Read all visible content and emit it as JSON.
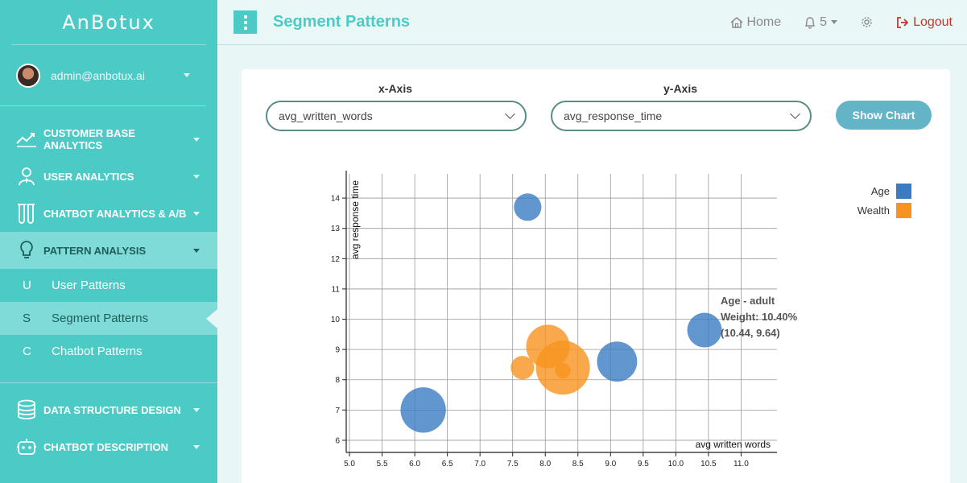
{
  "brand": "AnBotux",
  "user": {
    "email": "admin@anbotux.ai"
  },
  "nav": [
    {
      "label": "CUSTOMER BASE ANALYTICS",
      "icon": "trend-line-icon"
    },
    {
      "label": "USER ANALYTICS",
      "icon": "user-icon"
    },
    {
      "label": "CHATBOT ANALYTICS & A/B",
      "icon": "flask-icon"
    },
    {
      "label": "PATTERN ANALYSIS",
      "icon": "lightbulb-icon",
      "active": true
    }
  ],
  "subnav": [
    {
      "letter": "U",
      "label": "User Patterns"
    },
    {
      "letter": "S",
      "label": "Segment Patterns",
      "active": true
    },
    {
      "letter": "C",
      "label": "Chatbot Patterns"
    }
  ],
  "nav2": [
    {
      "label": "DATA STRUCTURE DESIGN",
      "icon": "database-icon"
    },
    {
      "label": "CHATBOT DESCRIPTION",
      "icon": "robot-icon"
    }
  ],
  "header": {
    "title": "Segment Patterns",
    "home": "Home",
    "notifications": "5",
    "logout": "Logout"
  },
  "controls": {
    "x_label": "x-Axis",
    "y_label": "y-Axis",
    "x_value": "avg_written_words",
    "y_value": "avg_response_time",
    "show_button": "Show Chart"
  },
  "colors": {
    "accent": "#4ccbc6",
    "age": "#3a7cc3",
    "wealth": "#f7931e",
    "logout": "#c0392b"
  },
  "chart_data": {
    "type": "scatter",
    "xlabel": "avg written words",
    "ylabel": "avg response time",
    "xlim": [
      4.95,
      11.55
    ],
    "ylim": [
      5.6,
      14.8
    ],
    "x_ticks": [
      5.0,
      5.5,
      6.0,
      6.5,
      7.0,
      7.5,
      8.0,
      8.5,
      9.0,
      9.5,
      10.0,
      10.5,
      11.0
    ],
    "y_ticks": [
      6,
      7,
      8,
      9,
      10,
      11,
      12,
      13,
      14
    ],
    "grid": true,
    "legend_position": "top-right",
    "series": [
      {
        "name": "Age",
        "color": "#3a7cc3",
        "points": [
          {
            "x": 6.13,
            "y": 7.0,
            "weight": 6.0
          },
          {
            "x": 7.73,
            "y": 13.7,
            "weight": 2.2
          },
          {
            "x": 9.1,
            "y": 8.6,
            "weight": 4.7
          },
          {
            "x": 10.44,
            "y": 9.64,
            "weight": 3.5
          }
        ]
      },
      {
        "name": "Wealth",
        "color": "#f7931e",
        "points": [
          {
            "x": 7.65,
            "y": 8.4,
            "weight": 1.6
          },
          {
            "x": 8.04,
            "y": 9.1,
            "weight": 5.5
          },
          {
            "x": 8.27,
            "y": 8.4,
            "weight": 8.5
          },
          {
            "x": 8.27,
            "y": 8.3,
            "weight": 0.7
          }
        ]
      }
    ],
    "tooltip": {
      "title": "Age - adult",
      "weight": "Weight: 10.40%",
      "coords": "(10.44, 9.64)"
    }
  }
}
